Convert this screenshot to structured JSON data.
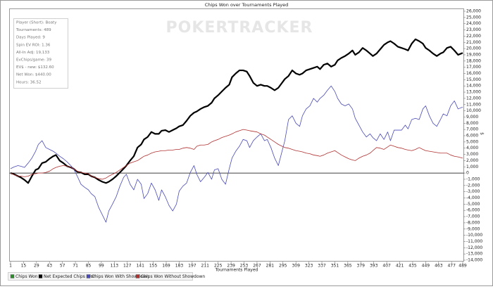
{
  "chart_data": {
    "type": "line",
    "title": "Chips Won over Tournaments Played",
    "x_label": "Tournaments Played",
    "y_label": "$",
    "watermark": "POKERTRACKER",
    "info_box": [
      "Player (Short): Boaty",
      "Tournaments: 489",
      "Days Played: 9",
      "Spin EV ROI: 1.36",
      "All-In Adj: 19,133",
      "EvChips/game: 39",
      "EV$ - new: $132.60",
      "Net Won: $440.00",
      "Hours: 36.52"
    ],
    "legend": [
      {
        "name": "Chips Won",
        "color": "#2e8b2e"
      },
      {
        "name": "Net Expected Chips Won",
        "color": "#000000"
      },
      {
        "name": "Chips Won With Showdown",
        "color": "#4a4ab8"
      },
      {
        "name": "Chips Won Without Showdown",
        "color": "#b03030"
      }
    ],
    "xlim": [
      1,
      489
    ],
    "xticks": [
      1,
      15,
      29,
      43,
      57,
      71,
      85,
      99,
      113,
      127,
      141,
      155,
      169,
      183,
      197,
      211,
      225,
      239,
      253,
      267,
      281,
      295,
      309,
      323,
      337,
      351,
      365,
      379,
      393,
      407,
      421,
      435,
      449,
      463,
      477,
      489
    ],
    "ylim": [
      -14000,
      26000
    ],
    "yticks": [
      {
        "value": 26000,
        "label": "26,000"
      },
      {
        "value": 25000,
        "label": "25,000"
      },
      {
        "value": 24000,
        "label": "24,000"
      },
      {
        "value": 23000,
        "label": "23,000"
      },
      {
        "value": 22000,
        "label": "22,000"
      },
      {
        "value": 21000,
        "label": "21,000"
      },
      {
        "value": 20000,
        "label": "20,000"
      },
      {
        "value": 19000,
        "label": "19,000"
      },
      {
        "value": 18000,
        "label": "18,000"
      },
      {
        "value": 17000,
        "label": "17,000"
      },
      {
        "value": 16000,
        "label": "16,000"
      },
      {
        "value": 15000,
        "label": "15,000"
      },
      {
        "value": 14000,
        "label": "14,000"
      },
      {
        "value": 13000,
        "label": "13,000"
      },
      {
        "value": 12000,
        "label": "12,000"
      },
      {
        "value": 11000,
        "label": "11,000"
      },
      {
        "value": 10000,
        "label": "10,000"
      },
      {
        "value": 9000,
        "label": "9,000"
      },
      {
        "value": 8000,
        "label": "8,000"
      },
      {
        "value": 7000,
        "label": "7,000"
      },
      {
        "value": 6000,
        "label": "6,000"
      },
      {
        "value": 5000,
        "label": "5,000"
      },
      {
        "value": 4000,
        "label": "4,000"
      },
      {
        "value": 3000,
        "label": "3,000"
      },
      {
        "value": 2000,
        "label": "2,000"
      },
      {
        "value": 1000,
        "label": "1,000"
      },
      0,
      {
        "value": -1000,
        "label": "-1,000"
      },
      {
        "value": -2000,
        "label": "-2,000"
      },
      {
        "value": -3000,
        "label": "-3,000"
      },
      {
        "value": -4000,
        "label": "-4,000"
      },
      {
        "value": -5000,
        "label": "-5,000"
      },
      {
        "value": -6000,
        "label": "-6,000"
      },
      {
        "value": -7000,
        "label": "-7,000"
      },
      {
        "value": -8000,
        "label": "-8,000"
      },
      {
        "value": -9000,
        "label": "-9,000"
      },
      {
        "value": -10000,
        "label": "-10,000"
      },
      {
        "value": -11000,
        "label": "-11,000"
      },
      {
        "value": -12000,
        "label": "-12,000"
      },
      {
        "value": -13000,
        "label": "-13,000"
      },
      {
        "value": -14000,
        "label": "-14,000"
      }
    ],
    "x": [
      1,
      5,
      9,
      12,
      16,
      20,
      24,
      28,
      31,
      35,
      39,
      43,
      47,
      50,
      54,
      58,
      62,
      66,
      69,
      73,
      77,
      81,
      85,
      88,
      92,
      96,
      100,
      104,
      107,
      111,
      115,
      119,
      123,
      126,
      130,
      134,
      138,
      142,
      145,
      149,
      153,
      157,
      161,
      164,
      168,
      172,
      176,
      180,
      183,
      187,
      191,
      195,
      199,
      202,
      206,
      210,
      214,
      218,
      221,
      225,
      229,
      233,
      237,
      240,
      244,
      248,
      252,
      256,
      259,
      263,
      267,
      271,
      275,
      278,
      282,
      286,
      290,
      294,
      297,
      301,
      305,
      309,
      313,
      316,
      320,
      324,
      328,
      332,
      335,
      339,
      343,
      347,
      351,
      354,
      358,
      362,
      366,
      370,
      373,
      377,
      381,
      385,
      389,
      392,
      396,
      400,
      404,
      408,
      411,
      415,
      419,
      423,
      427,
      430,
      434,
      438,
      442,
      446,
      449,
      453,
      457,
      461,
      465,
      468,
      472,
      476,
      480,
      484,
      489
    ],
    "series": [
      {
        "name": "Net Expected Chips Won",
        "color": "#000000",
        "width": 2.2,
        "values": [
          0,
          -200,
          -500,
          -700,
          -1100,
          -1600,
          -500,
          500,
          700,
          1600,
          1800,
          2300,
          2700,
          2900,
          2000,
          1600,
          1100,
          900,
          700,
          200,
          100,
          -200,
          -200,
          -500,
          -700,
          -1100,
          -1400,
          -1600,
          -1400,
          -1000,
          -500,
          100,
          700,
          1200,
          2000,
          2700,
          4100,
          4600,
          5400,
          5800,
          6600,
          6300,
          6300,
          6800,
          6900,
          6600,
          6900,
          7200,
          7500,
          7700,
          8400,
          9200,
          9700,
          9900,
          10300,
          10600,
          10800,
          11300,
          12000,
          12500,
          13100,
          13700,
          14200,
          15400,
          16000,
          16500,
          16500,
          16300,
          15600,
          14500,
          14000,
          14200,
          14000,
          14000,
          13700,
          13300,
          13700,
          14500,
          15100,
          15600,
          16500,
          16000,
          15800,
          16000,
          16500,
          16700,
          16900,
          17100,
          16700,
          17400,
          17600,
          17100,
          17400,
          18100,
          18500,
          18800,
          19200,
          19700,
          19000,
          19400,
          20100,
          19700,
          19200,
          18800,
          19200,
          19900,
          20600,
          21000,
          21200,
          20800,
          20300,
          20100,
          19900,
          19700,
          20800,
          21500,
          21200,
          20800,
          20100,
          19700,
          19200,
          18800,
          19200,
          19400,
          20100,
          20300,
          19700,
          19000,
          19300
        ]
      },
      {
        "name": "Chips Won With Showdown",
        "color": "#4a4ab8",
        "width": 0.8,
        "values": [
          700,
          1000,
          1200,
          1100,
          900,
          1600,
          2400,
          3500,
          4600,
          5200,
          4100,
          3800,
          3500,
          3200,
          2700,
          2300,
          1800,
          1200,
          700,
          -500,
          -1800,
          -2300,
          -2700,
          -3300,
          -3800,
          -5500,
          -6700,
          -7900,
          -6100,
          -5000,
          -3800,
          -2100,
          -700,
          -200,
          -1800,
          -2700,
          -1000,
          -1800,
          -4100,
          -3300,
          -1600,
          -2700,
          -4400,
          -2700,
          -3800,
          -5200,
          -6100,
          -5000,
          -2900,
          -2100,
          -1600,
          100,
          1200,
          -200,
          -1400,
          -700,
          100,
          -1000,
          500,
          700,
          -1000,
          -1800,
          700,
          2400,
          3500,
          4300,
          5400,
          5200,
          4100,
          5200,
          5800,
          6300,
          5200,
          5400,
          4100,
          2400,
          1200,
          3500,
          5200,
          8600,
          9200,
          8000,
          7500,
          9200,
          10300,
          10800,
          12000,
          11400,
          12000,
          12500,
          13300,
          14000,
          13100,
          12000,
          11100,
          10800,
          11100,
          10300,
          8800,
          7700,
          6600,
          5800,
          6300,
          5700,
          5200,
          6300,
          5400,
          6600,
          5200,
          6900,
          6900,
          6900,
          7700,
          7100,
          8600,
          8800,
          8600,
          10300,
          10800,
          9200,
          8000,
          7500,
          8600,
          9500,
          9200,
          10800,
          11600,
          10300,
          10600
        ]
      },
      {
        "name": "Chips Won Without Showdown",
        "color": "#b03030",
        "width": 0.8,
        "values": [
          0,
          -300,
          -500,
          -500,
          -600,
          -500,
          -200,
          -100,
          0,
          0,
          100,
          300,
          700,
          900,
          1100,
          1200,
          1100,
          900,
          700,
          300,
          100,
          0,
          -100,
          -500,
          -700,
          -900,
          -1000,
          -800,
          -500,
          -200,
          100,
          500,
          900,
          1200,
          1600,
          1800,
          2000,
          2400,
          2700,
          2900,
          3200,
          3400,
          3500,
          3600,
          3600,
          3700,
          3700,
          3800,
          3800,
          4000,
          4100,
          4000,
          3800,
          4300,
          4500,
          4500,
          4600,
          5000,
          5200,
          5400,
          5700,
          5900,
          6100,
          6300,
          6600,
          6800,
          7000,
          6900,
          6800,
          6700,
          6600,
          6300,
          6100,
          5800,
          5400,
          5000,
          4600,
          4300,
          4100,
          4000,
          3800,
          3600,
          3500,
          3400,
          3200,
          3100,
          2900,
          2800,
          2700,
          2900,
          3200,
          3400,
          3600,
          3300,
          2900,
          2600,
          2300,
          2100,
          2000,
          2400,
          2700,
          2900,
          3200,
          3600,
          4100,
          4000,
          3800,
          4200,
          4500,
          4300,
          4100,
          4000,
          3800,
          3700,
          3600,
          3800,
          4100,
          3800,
          3600,
          3500,
          3400,
          3300,
          3200,
          3200,
          3200,
          2900,
          2700,
          2600,
          2400
        ]
      }
    ]
  }
}
